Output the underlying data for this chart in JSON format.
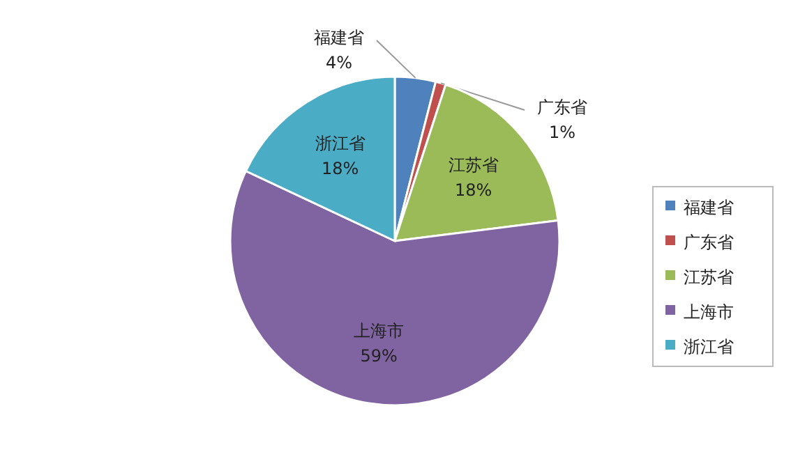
{
  "chart_data": {
    "type": "pie",
    "categories": [
      "福建省",
      "广东省",
      "江苏省",
      "上海市",
      "浙江省"
    ],
    "values": [
      4,
      1,
      18,
      59,
      18
    ],
    "colors": [
      "#4f81bd",
      "#c0504d",
      "#9bbb59",
      "#8064a2",
      "#4bacc6"
    ],
    "value_labels": [
      "4%",
      "1%",
      "18%",
      "59%",
      "18%"
    ],
    "legend": "right"
  }
}
